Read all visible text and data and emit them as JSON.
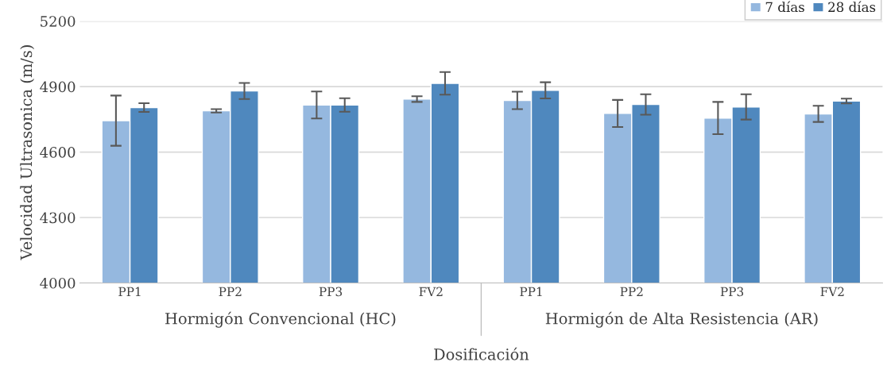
{
  "chart_data": {
    "type": "bar",
    "categories": [
      "PP1",
      "PP2",
      "PP3",
      "FV2",
      "PP1",
      "PP2",
      "PP3",
      "FV2"
    ],
    "series": [
      {
        "name": "7 días",
        "color": "#95b8df",
        "values": [
          4744,
          4789,
          4816,
          4843,
          4837,
          4777,
          4756,
          4775
        ],
        "errors": [
          115,
          8,
          62,
          13,
          40,
          62,
          74,
          37
        ]
      },
      {
        "name": "28 días",
        "color": "#4f88be",
        "values": [
          4804,
          4880,
          4816,
          4915,
          4883,
          4818,
          4807,
          4834
        ],
        "errors": [
          20,
          37,
          31,
          52,
          37,
          47,
          58,
          11
        ]
      }
    ],
    "annotations": [
      "Hormigón Convencional (HC)",
      "Hormigón de Alta Resistencia (AR)"
    ],
    "xlabel": "Dosificación",
    "ylabel": "Velocidad Ultrasonica (m/s)",
    "ylim": [
      4000,
      5200
    ],
    "yticks": [
      4000,
      4300,
      4600,
      4900,
      5200
    ],
    "grid": "y",
    "legend": "top right"
  }
}
